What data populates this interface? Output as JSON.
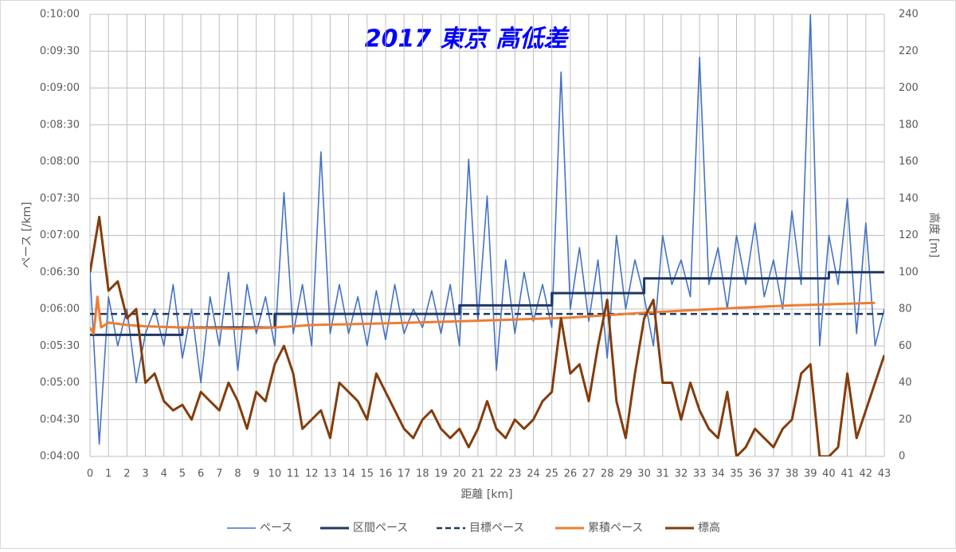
{
  "chart_data": {
    "type": "line",
    "title": "2017 東京 高低差",
    "x_label": "距離 [km]",
    "y_label": "ペース [/km]",
    "y2_label": "高度 [m]",
    "xlim": [
      0,
      43
    ],
    "xticks": [
      0,
      1,
      2,
      3,
      4,
      5,
      6,
      7,
      8,
      9,
      10,
      11,
      12,
      13,
      14,
      15,
      16,
      17,
      18,
      19,
      20,
      21,
      22,
      23,
      24,
      25,
      26,
      27,
      28,
      29,
      30,
      31,
      32,
      33,
      34,
      35,
      36,
      37,
      38,
      39,
      40,
      41,
      42,
      43
    ],
    "ylim": [
      240,
      600
    ],
    "yticks": [
      {
        "value": 240,
        "label": "0:04:00"
      },
      {
        "value": 270,
        "label": "0:04:30"
      },
      {
        "value": 300,
        "label": "0:05:00"
      },
      {
        "value": 330,
        "label": "0:05:30"
      },
      {
        "value": 360,
        "label": "0:06:00"
      },
      {
        "value": 390,
        "label": "0:06:30"
      },
      {
        "value": 420,
        "label": "0:07:00"
      },
      {
        "value": 450,
        "label": "0:07:30"
      },
      {
        "value": 480,
        "label": "0:08:00"
      },
      {
        "value": 510,
        "label": "0:08:30"
      },
      {
        "value": 540,
        "label": "0:09:00"
      },
      {
        "value": 570,
        "label": "0:09:30"
      },
      {
        "value": 600,
        "label": "0:10:00"
      }
    ],
    "y2lim": [
      0,
      240
    ],
    "y2ticks": [
      0,
      20,
      40,
      60,
      80,
      100,
      120,
      140,
      160,
      180,
      200,
      220,
      240
    ],
    "grid": true,
    "legend": "bottom",
    "series": [
      {
        "name": "ペース",
        "color": "#4472c4",
        "width": 1.6,
        "dash": false,
        "x": [
          0,
          0.5,
          1,
          1.5,
          2,
          2.5,
          3,
          3.5,
          4,
          4.5,
          5,
          5.5,
          6,
          6.5,
          7,
          7.5,
          8,
          8.5,
          9,
          9.5,
          10,
          10.5,
          11,
          11.5,
          12,
          12.5,
          13,
          13.5,
          14,
          14.5,
          15,
          15.5,
          16,
          16.5,
          17,
          17.5,
          18,
          18.5,
          19,
          19.5,
          20,
          20.5,
          21,
          21.5,
          22,
          22.5,
          23,
          23.5,
          24,
          24.5,
          25,
          25.5,
          26,
          26.5,
          27,
          27.5,
          28,
          28.5,
          29,
          29.5,
          30,
          30.5,
          31,
          31.5,
          32,
          32.5,
          33,
          33.5,
          34,
          34.5,
          35,
          35.5,
          36,
          36.5,
          37,
          37.5,
          38,
          38.5,
          39,
          39.5,
          40,
          40.5,
          41,
          41.5,
          42,
          42.5,
          43
        ],
        "values": [
          390,
          250,
          370,
          330,
          360,
          300,
          340,
          360,
          330,
          380,
          320,
          360,
          300,
          370,
          330,
          390,
          310,
          380,
          340,
          370,
          330,
          455,
          340,
          380,
          330,
          488,
          340,
          380,
          340,
          370,
          330,
          375,
          335,
          380,
          340,
          360,
          345,
          375,
          340,
          380,
          330,
          482,
          350,
          452,
          310,
          400,
          340,
          390,
          350,
          380,
          345,
          553,
          360,
          410,
          350,
          400,
          320,
          420,
          360,
          400,
          370,
          330,
          420,
          380,
          400,
          370,
          565,
          380,
          410,
          360,
          420,
          380,
          430,
          370,
          400,
          360,
          440,
          380,
          600,
          330,
          420,
          380,
          450,
          340,
          430,
          330,
          360
        ]
      },
      {
        "name": "区間ペース",
        "color": "#1f3864",
        "width": 3,
        "dash": false,
        "x": [
          0,
          5,
          5,
          10,
          10,
          20,
          20,
          25,
          25,
          30,
          30,
          40,
          40,
          43
        ],
        "values": [
          339,
          339,
          345,
          345,
          356,
          356,
          363,
          363,
          373,
          373,
          385,
          385,
          390,
          390
        ]
      },
      {
        "name": "目標ペース",
        "color": "#1f3864",
        "width": 2.5,
        "dash": true,
        "x": [
          0,
          43
        ],
        "values": [
          356,
          356
        ]
      },
      {
        "name": "累積ペース",
        "color": "#ed7d31",
        "width": 3,
        "dash": false,
        "x": [
          0,
          0.2,
          0.4,
          0.6,
          1,
          2,
          3,
          5,
          8,
          10,
          12,
          15,
          20,
          26,
          30,
          35,
          38,
          42.5
        ],
        "values": [
          345,
          340,
          370,
          345,
          349,
          347,
          346,
          345,
          344,
          345,
          347,
          348,
          350,
          353,
          357,
          361,
          363,
          365
        ]
      },
      {
        "name": "標高",
        "color": "#843c0c",
        "width": 3,
        "dash": false,
        "axis": "y2",
        "x": [
          0,
          0.5,
          1,
          1.5,
          2,
          2.5,
          3,
          3.5,
          4,
          4.5,
          5,
          5.5,
          6,
          6.5,
          7,
          7.5,
          8,
          8.5,
          9,
          9.5,
          10,
          10.5,
          11,
          11.5,
          12,
          12.5,
          13,
          13.5,
          14,
          14.5,
          15,
          15.5,
          16,
          16.5,
          17,
          17.5,
          18,
          18.5,
          19,
          19.5,
          20,
          20.5,
          21,
          21.5,
          22,
          22.5,
          23,
          23.5,
          24,
          24.5,
          25,
          25.5,
          26,
          26.5,
          27,
          27.5,
          28,
          28.5,
          29,
          29.5,
          30,
          30.5,
          31,
          31.5,
          32,
          32.5,
          33,
          33.5,
          34,
          34.5,
          35,
          35.5,
          36,
          36.5,
          37,
          37.5,
          38,
          38.5,
          39,
          39.5,
          40,
          40.5,
          41,
          41.5,
          42,
          42.5,
          43
        ],
        "values": [
          100,
          130,
          90,
          95,
          75,
          80,
          40,
          45,
          30,
          25,
          28,
          20,
          35,
          30,
          25,
          40,
          30,
          15,
          35,
          30,
          50,
          60,
          45,
          15,
          20,
          25,
          10,
          40,
          35,
          30,
          20,
          45,
          35,
          25,
          15,
          10,
          20,
          25,
          15,
          10,
          15,
          5,
          15,
          30,
          15,
          10,
          20,
          15,
          20,
          30,
          35,
          75,
          45,
          50,
          30,
          60,
          85,
          30,
          10,
          45,
          75,
          85,
          40,
          40,
          20,
          40,
          25,
          15,
          10,
          35,
          0,
          5,
          15,
          10,
          5,
          15,
          20,
          45,
          50,
          0,
          0,
          5,
          45,
          10,
          25,
          40,
          55
        ]
      }
    ]
  }
}
